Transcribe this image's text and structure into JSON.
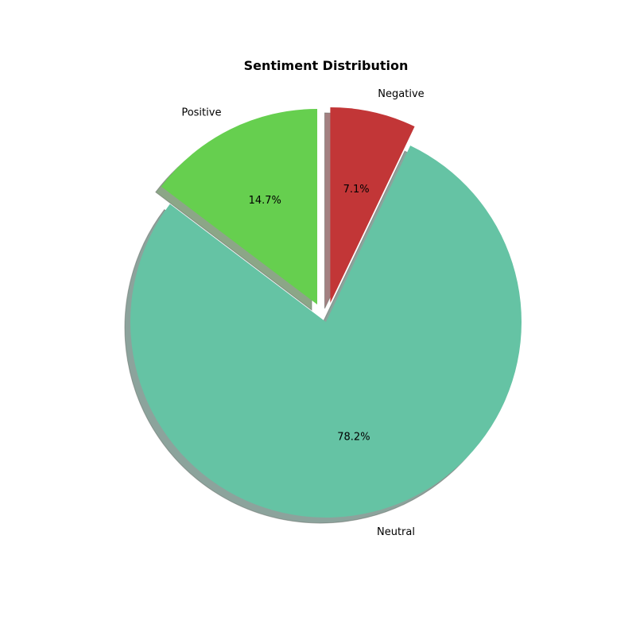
{
  "chart_data": {
    "type": "pie",
    "title": "Sentiment Distribution",
    "slices": [
      {
        "label": "Negative",
        "value": 7.1,
        "pct_label": "7.1%",
        "color": "#c23637",
        "exploded": true
      },
      {
        "label": "Neutral",
        "value": 78.2,
        "pct_label": "78.2%",
        "color": "#65c3a4",
        "exploded": false
      },
      {
        "label": "Positive",
        "value": 14.7,
        "pct_label": "14.7%",
        "color": "#66cf4f",
        "exploded": true
      }
    ],
    "shadow": true,
    "start_direction": "top, clockwise"
  }
}
